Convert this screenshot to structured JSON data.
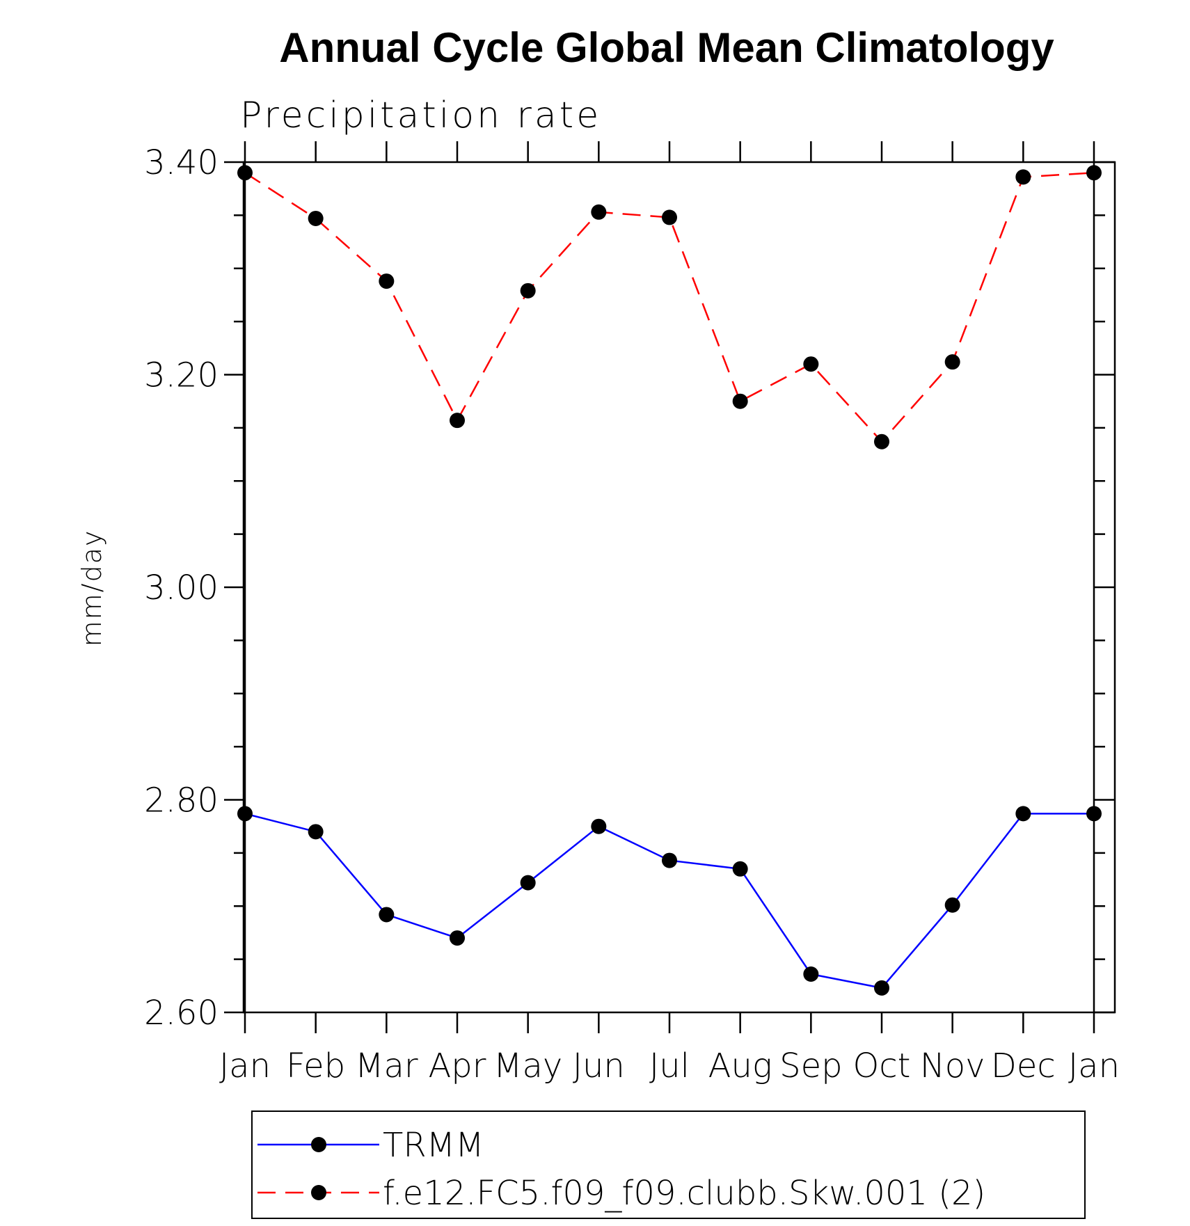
{
  "chart_data": {
    "type": "line",
    "title": "Annual Cycle Global Mean Climatology",
    "subtitle": "Precipitation rate",
    "xlabel": "",
    "ylabel": "mm/day",
    "categories": [
      "Jan",
      "Feb",
      "Mar",
      "Apr",
      "May",
      "Jun",
      "Jul",
      "Aug",
      "Sep",
      "Oct",
      "Nov",
      "Dec",
      "Jan"
    ],
    "ylim": [
      2.6,
      3.4
    ],
    "yticks": [
      2.6,
      2.8,
      3.0,
      3.2,
      3.4
    ],
    "ytick_labels": [
      "2.60",
      "2.80",
      "3.00",
      "3.20",
      "3.40"
    ],
    "y_minor_step": 0.05,
    "grid": false,
    "legend_placement": "bottom",
    "series": [
      {
        "name": "TRMM",
        "color": "#0000ff",
        "line_style": "solid",
        "marker": "filled-circle",
        "values": [
          2.787,
          2.77,
          2.692,
          2.67,
          2.722,
          2.775,
          2.743,
          2.735,
          2.636,
          2.623,
          2.701,
          2.787,
          2.787
        ]
      },
      {
        "name": "f.e12.FC5.f09_f09.clubb.Skw.001 (2)",
        "color": "#ff0000",
        "line_style": "dashed",
        "marker": "filled-circle",
        "values": [
          3.39,
          3.347,
          3.288,
          3.157,
          3.279,
          3.353,
          3.348,
          3.175,
          3.21,
          3.137,
          3.212,
          3.386,
          3.39
        ]
      }
    ],
    "marker_color": "#000000"
  }
}
